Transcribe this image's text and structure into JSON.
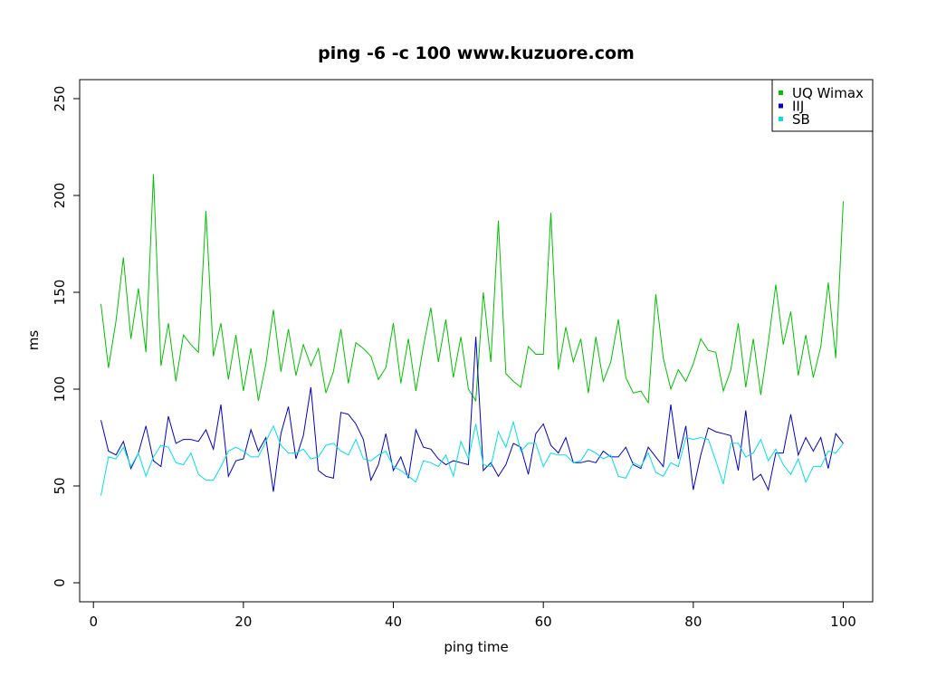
{
  "chart_data": {
    "type": "line",
    "title": "ping -6 -c 100 www.kuzuore.com",
    "xlabel": "ping time",
    "ylabel": "ms",
    "xlim": [
      1,
      100
    ],
    "ylim": [
      0,
      250
    ],
    "xticks": [
      0,
      20,
      40,
      60,
      80,
      100
    ],
    "yticks": [
      0,
      50,
      100,
      150,
      200,
      250
    ],
    "grid": false,
    "legend_position": "top-right",
    "series": [
      {
        "name": "UQ Wimax",
        "color": "#00c000",
        "values": [
          144,
          111,
          135,
          168,
          126,
          152,
          119,
          211,
          112,
          134,
          104,
          128,
          123,
          119,
          192,
          117,
          134,
          105,
          128,
          99,
          121,
          94,
          113,
          141,
          109,
          131,
          107,
          123,
          112,
          121,
          98,
          109,
          131,
          103,
          124,
          121,
          117,
          105,
          111,
          134,
          103,
          126,
          99,
          122,
          142,
          114,
          136,
          106,
          127,
          100,
          94,
          150,
          114,
          187,
          108,
          104,
          101,
          122,
          118,
          118,
          191,
          110,
          132,
          114,
          126,
          98,
          127,
          104,
          114,
          136,
          106,
          98,
          99,
          93,
          149,
          116,
          100,
          110,
          104,
          113,
          126,
          120,
          119,
          99,
          110,
          134,
          101,
          126,
          97,
          124,
          154,
          123,
          140,
          107,
          128,
          106,
          122,
          155,
          116,
          197
        ]
      },
      {
        "name": "IIJ",
        "color": "#0000c8",
        "values": [
          84,
          68,
          66,
          73,
          59,
          67,
          81,
          63,
          60,
          86,
          72,
          74,
          74,
          73,
          79,
          69,
          92,
          55,
          63,
          64,
          79,
          68,
          75,
          47,
          77,
          91,
          64,
          76,
          101,
          58,
          55,
          54,
          88,
          87,
          82,
          74,
          53,
          61,
          77,
          58,
          65,
          54,
          79,
          70,
          69,
          64,
          61,
          63,
          62,
          61,
          127,
          58,
          62,
          55,
          61,
          72,
          70,
          56,
          77,
          82,
          71,
          67,
          75,
          62,
          62,
          63,
          62,
          68,
          65,
          65,
          70,
          61,
          59,
          70,
          65,
          60,
          92,
          64,
          81,
          48,
          66,
          80,
          78,
          77,
          76,
          58,
          89,
          53,
          56,
          48,
          67,
          67,
          87,
          66,
          75,
          68,
          75,
          59,
          77,
          72
        ]
      },
      {
        "name": "SB",
        "color": "#00e0e0",
        "values": [
          45,
          65,
          64,
          70,
          60,
          67,
          55,
          65,
          71,
          70,
          62,
          61,
          67,
          56,
          53,
          53,
          60,
          68,
          70,
          68,
          65,
          65,
          73,
          81,
          71,
          67,
          67,
          69,
          64,
          65,
          71,
          72,
          68,
          66,
          74,
          64,
          63,
          66,
          68,
          60,
          58,
          55,
          52,
          63,
          62,
          60,
          66,
          55,
          73,
          64,
          82,
          61,
          60,
          78,
          70,
          83,
          68,
          72,
          72,
          60,
          67,
          66,
          66,
          62,
          63,
          69,
          67,
          64,
          66,
          55,
          54,
          62,
          60,
          67,
          57,
          55,
          62,
          60,
          75,
          74,
          75,
          74,
          63,
          51,
          72,
          72,
          65,
          67,
          74,
          63,
          69,
          61,
          56,
          64,
          52,
          60,
          60,
          68,
          67,
          72
        ]
      }
    ]
  }
}
